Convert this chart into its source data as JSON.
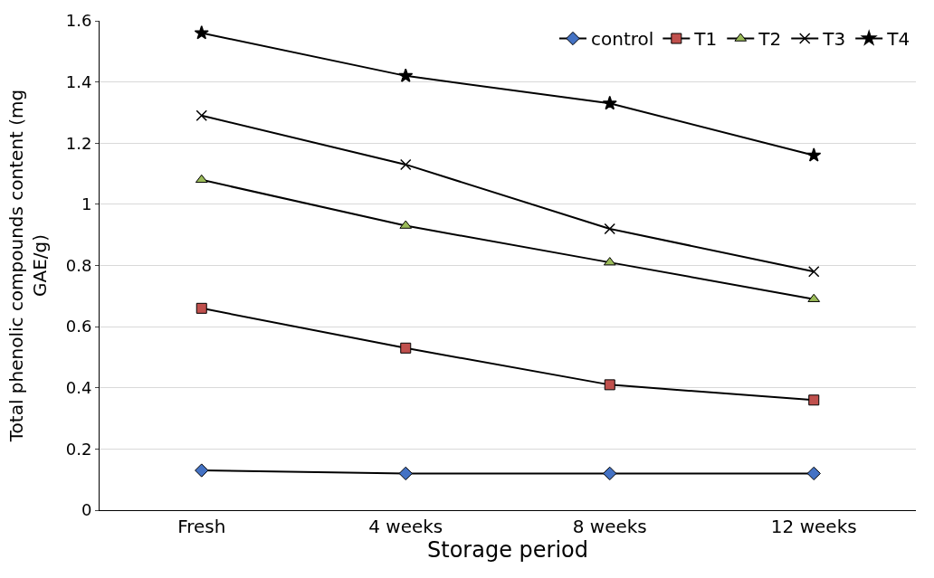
{
  "chart_data": {
    "type": "line",
    "xlabel": "Storage period",
    "ylabel": "Total phenolic compounds content (mg GAE/g)",
    "categories": [
      "Fresh",
      "4 weeks",
      "8 weeks",
      "12 weeks"
    ],
    "series": [
      {
        "name": "control",
        "color": "#4472c4",
        "marker": "diamond",
        "values": [
          0.13,
          0.12,
          0.12,
          0.12
        ]
      },
      {
        "name": "T1",
        "color": "#c0504d",
        "marker": "square",
        "values": [
          0.66,
          0.53,
          0.41,
          0.36
        ]
      },
      {
        "name": "T2",
        "color": "#9bbb59",
        "marker": "triangle",
        "values": [
          1.08,
          0.93,
          0.81,
          0.69
        ]
      },
      {
        "name": "T3",
        "color": "#000000",
        "marker": "cross",
        "values": [
          1.29,
          1.13,
          0.92,
          0.78
        ]
      },
      {
        "name": "T4",
        "color": "#000000",
        "marker": "star",
        "values": [
          1.56,
          1.42,
          1.33,
          1.16
        ]
      }
    ],
    "ylim": [
      0,
      1.6
    ],
    "yticks": [
      0,
      0.2,
      0.4,
      0.6,
      0.8,
      1,
      1.2,
      1.4,
      1.6
    ],
    "grid": "y",
    "legend": "top right",
    "line_style": "solid"
  }
}
